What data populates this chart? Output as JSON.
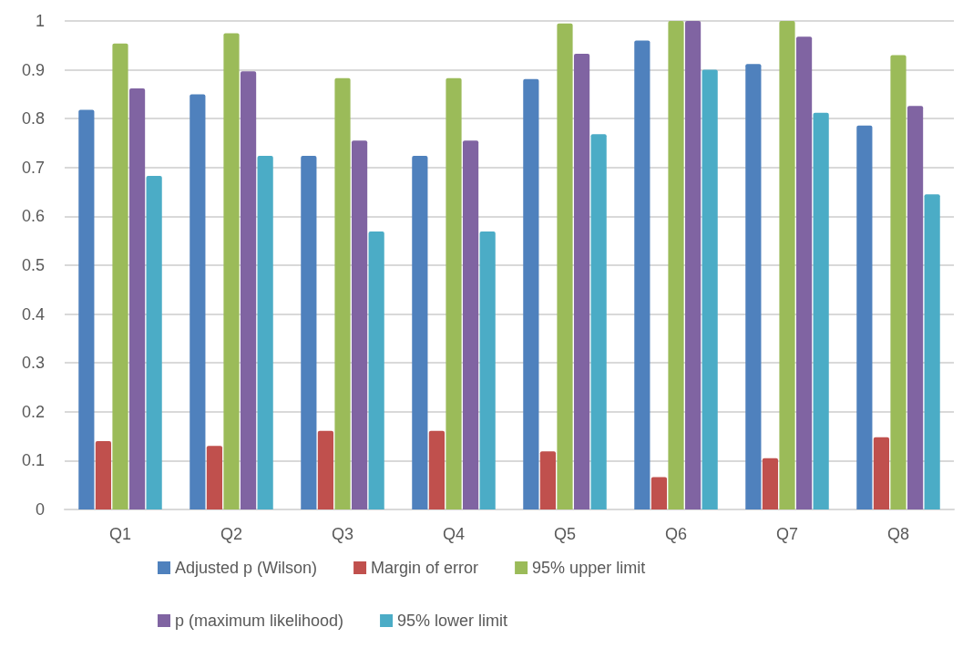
{
  "chart_data": {
    "type": "bar",
    "categories": [
      "Q1",
      "Q2",
      "Q3",
      "Q4",
      "Q5",
      "Q6",
      "Q7",
      "Q8"
    ],
    "series": [
      {
        "name": "Adjusted p (Wilson)",
        "color": "#4f81bd",
        "values": [
          0.818,
          0.85,
          0.724,
          0.724,
          0.881,
          0.96,
          0.912,
          0.786
        ]
      },
      {
        "name": "Margin of error",
        "color": "#c0504d",
        "values": [
          0.14,
          0.13,
          0.161,
          0.161,
          0.119,
          0.066,
          0.105,
          0.148
        ]
      },
      {
        "name": "95% upper limit",
        "color": "#9bbb59",
        "values": [
          0.954,
          0.975,
          0.883,
          0.883,
          0.995,
          1.0,
          1.0,
          0.93
        ]
      },
      {
        "name": "p (maximum likelihood)",
        "color": "#8064a2",
        "values": [
          0.862,
          0.897,
          0.755,
          0.755,
          0.933,
          1.0,
          0.968,
          0.826
        ]
      },
      {
        "name": "95% lower limit",
        "color": "#4bacc6",
        "values": [
          0.683,
          0.724,
          0.569,
          0.569,
          0.768,
          0.9,
          0.812,
          0.645
        ]
      }
    ],
    "ylim": [
      0,
      1
    ],
    "yticks": [
      0,
      0.1,
      0.2,
      0.3,
      0.4,
      0.5,
      0.6,
      0.7,
      0.8,
      0.9,
      1
    ],
    "grid": "y",
    "legend": "bottom"
  }
}
